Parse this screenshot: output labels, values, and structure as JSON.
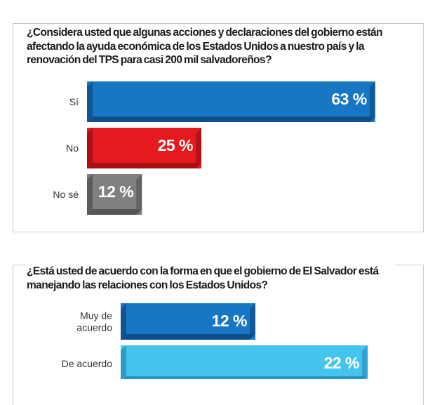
{
  "chart_data": [
    {
      "type": "bar",
      "title": "¿Considera usted que algunas acciones y declaraciones del gobierno están afectando la ayuda económica de los Estados Unidos a nuestro país y la renovación del TPS para casi 200 mil salvadoreños?",
      "categories": [
        "Sí",
        "No",
        "No sé"
      ],
      "values": [
        63,
        25,
        12
      ],
      "value_labels": [
        "63 %",
        "25 %",
        "12 %"
      ],
      "unit": "%",
      "colors": [
        "#1877c4",
        "#e5191e",
        "#808080"
      ],
      "shade_colors": [
        "#0d4f8a",
        "#a30f13",
        "#555555"
      ],
      "xlim": [
        0,
        100
      ]
    },
    {
      "type": "bar",
      "title": "¿Está usted de acuerdo con la forma en que el gobierno de El Salvador está manejando las relaciones con los Estados Unidos?",
      "categories": [
        "Muy de acuerdo",
        "De acuerdo"
      ],
      "category_lines": [
        [
          "Muy de",
          "acuerdo"
        ],
        [
          "De acuerdo"
        ]
      ],
      "values": [
        12,
        22
      ],
      "value_labels": [
        "12 %",
        "22 %"
      ],
      "unit": "%",
      "colors": [
        "#1877c4",
        "#45c5ee"
      ],
      "shade_colors": [
        "#0d4f8a",
        "#2a94c0"
      ],
      "xlim": [
        0,
        100
      ]
    }
  ]
}
